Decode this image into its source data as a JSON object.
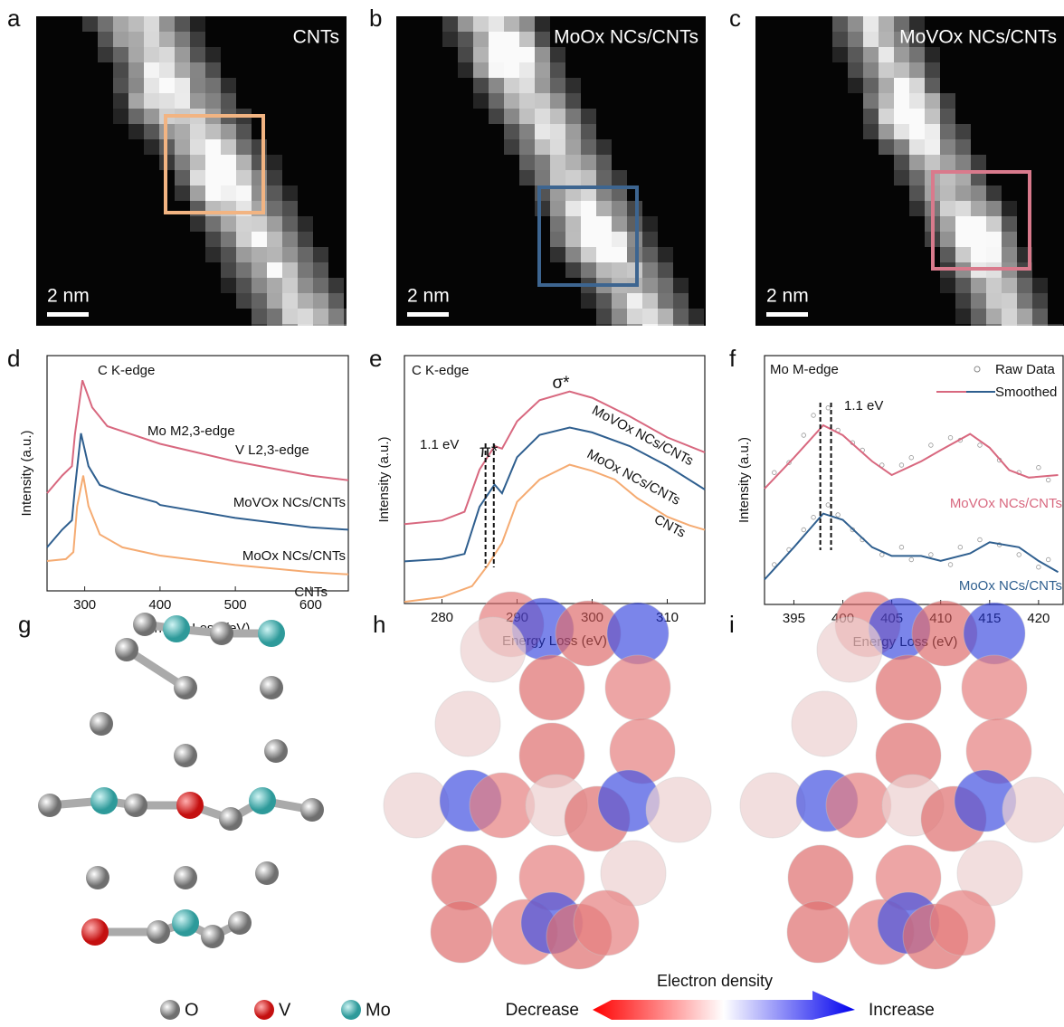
{
  "panels": {
    "letters": [
      "a",
      "b",
      "c",
      "d",
      "e",
      "f",
      "g",
      "h",
      "i"
    ]
  },
  "images": [
    {
      "label": "CNTs",
      "scale": "2 nm",
      "box_color": "#f2b482"
    },
    {
      "label": "MoOx NCs/CNTs",
      "scale": "2 nm",
      "box_color": "#3d6590"
    },
    {
      "label": "MoVOx NCs/CNTs",
      "scale": "2 nm",
      "box_color": "#d97a8c"
    }
  ],
  "chart_data": [
    {
      "type": "line",
      "xlabel": "Energy Loss (eV)",
      "ylabel": "Intensity (a.u.)",
      "xlim": [
        250,
        650
      ],
      "ylim": [
        0,
        10
      ],
      "xticks": [
        300,
        400,
        500,
        600
      ],
      "annotations": [
        "C K-edge",
        "Mo M2,3-edge",
        "V L2,3-edge"
      ],
      "series": [
        {
          "name": "CNTs",
          "color": "#f5ab72",
          "x": [
            250,
            275,
            285,
            290,
            298,
            305,
            320,
            350,
            400,
            500,
            600,
            650
          ],
          "values": [
            1.27,
            1.35,
            1.65,
            3.6,
            4.9,
            3.6,
            2.4,
            1.85,
            1.5,
            1.1,
            0.8,
            0.7
          ]
        },
        {
          "name": "MoOx NCs/CNTs",
          "color": "#2f5f8f",
          "x": [
            250,
            270,
            283,
            287,
            295,
            305,
            320,
            350,
            395,
            400,
            500,
            600,
            650
          ],
          "values": [
            1.85,
            2.6,
            3.0,
            4.35,
            6.7,
            5.3,
            4.5,
            4.15,
            3.77,
            3.65,
            3.1,
            2.7,
            2.6
          ]
        },
        {
          "name": "MoVOx NCs/CNTs",
          "color": "#d8687f",
          "x": [
            250,
            270,
            283,
            287,
            297,
            310,
            330,
            400,
            500,
            600,
            650
          ],
          "values": [
            4.15,
            4.9,
            5.3,
            6.65,
            8.95,
            7.8,
            7.0,
            6.25,
            5.5,
            4.9,
            4.7
          ]
        }
      ]
    },
    {
      "type": "line",
      "xlabel": "Energy Loss (eV)",
      "ylabel": "Intensity (a.u.)",
      "xlim": [
        275,
        315
      ],
      "ylim": [
        0,
        10
      ],
      "xticks": [
        280,
        290,
        300,
        310
      ],
      "annotations": [
        "C K-edge",
        "σ*",
        "π*",
        "1.1 eV"
      ],
      "marker_lines": [
        285.8,
        286.9
      ],
      "series": [
        {
          "name": "CNTs",
          "color": "#f5ab72",
          "x": [
            275,
            280,
            284,
            286,
            288,
            290,
            293,
            297,
            300,
            303,
            306,
            310,
            313,
            315
          ],
          "values": [
            0.07,
            0.26,
            0.7,
            1.5,
            2.45,
            4.1,
            5.0,
            5.6,
            5.35,
            5.0,
            4.25,
            3.5,
            3.15,
            2.97
          ]
        },
        {
          "name": "MoOx NCs/CNTs",
          "color": "#2f5f8f",
          "x": [
            275,
            280,
            283,
            285,
            287,
            288,
            290,
            293,
            297,
            300,
            305,
            310,
            315
          ],
          "values": [
            1.7,
            1.8,
            2.0,
            3.9,
            4.8,
            4.45,
            5.9,
            6.8,
            7.1,
            6.9,
            6.35,
            5.55,
            4.6
          ]
        },
        {
          "name": "MoVOx NCs/CNTs",
          "color": "#d8687f",
          "x": [
            275,
            280,
            283,
            285,
            287,
            288,
            290,
            293,
            297,
            300,
            305,
            310,
            315
          ],
          "values": [
            3.2,
            3.35,
            3.7,
            5.4,
            6.35,
            6.25,
            7.35,
            8.2,
            8.55,
            8.3,
            7.55,
            6.7,
            6.1
          ]
        }
      ]
    },
    {
      "type": "line",
      "xlabel": "Energy Loss (eV)",
      "ylabel": "Intensity (a.u.)",
      "xlim": [
        392,
        422.6
      ],
      "ylim": [
        0,
        10
      ],
      "xticks": [
        395,
        400,
        405,
        410,
        415,
        420
      ],
      "annotations": [
        "Mo M-edge",
        "1.1 eV"
      ],
      "marker_lines": [
        397.7,
        398.8
      ],
      "legend": [
        "Raw Data",
        "Smoothed"
      ],
      "series": [
        {
          "name": "MoVOx NCs/CNTs",
          "color": "#d8687f",
          "x": [
            392,
            395,
            398,
            400,
            403,
            405,
            408,
            410,
            413,
            415,
            417,
            419,
            422
          ],
          "values": [
            4.65,
            5.9,
            7.2,
            6.8,
            5.75,
            5.2,
            5.75,
            6.2,
            6.85,
            6.3,
            5.4,
            5.1,
            5.2
          ],
          "raw_x": [
            393,
            394.5,
            396,
            397,
            398.5,
            399.5,
            401,
            402,
            404,
            406,
            407,
            409,
            411,
            412,
            414,
            416,
            418,
            420,
            421
          ],
          "raw_values": [
            5.3,
            5.7,
            6.8,
            7.6,
            7.9,
            7.0,
            6.5,
            6.2,
            5.6,
            5.6,
            5.9,
            6.4,
            6.7,
            6.6,
            6.4,
            5.8,
            5.3,
            5.5,
            5.0
          ]
        },
        {
          "name": "MoOx NCs/CNTs",
          "color": "#2f5f8f",
          "x": [
            392,
            395,
            398,
            400,
            403,
            405,
            408,
            410,
            413,
            415,
            418,
            420,
            422
          ],
          "values": [
            1.0,
            2.3,
            3.65,
            3.4,
            2.3,
            1.95,
            1.95,
            1.75,
            2.05,
            2.5,
            2.3,
            1.75,
            1.3
          ],
          "raw_x": [
            393,
            394.5,
            396,
            397,
            398.5,
            399.5,
            401,
            402,
            404,
            406,
            407,
            409,
            411,
            412,
            414,
            416,
            418,
            420,
            421
          ],
          "raw_values": [
            1.6,
            2.2,
            3.0,
            3.5,
            4.0,
            3.6,
            3.0,
            2.6,
            2.0,
            2.3,
            1.8,
            2.0,
            1.6,
            2.3,
            2.6,
            2.4,
            2.0,
            1.5,
            1.8
          ]
        }
      ]
    }
  ],
  "structure_legend": [
    "O",
    "V",
    "Mo"
  ],
  "colorbar": {
    "title": "Electron density",
    "low": "Decrease",
    "high": "Increase"
  }
}
